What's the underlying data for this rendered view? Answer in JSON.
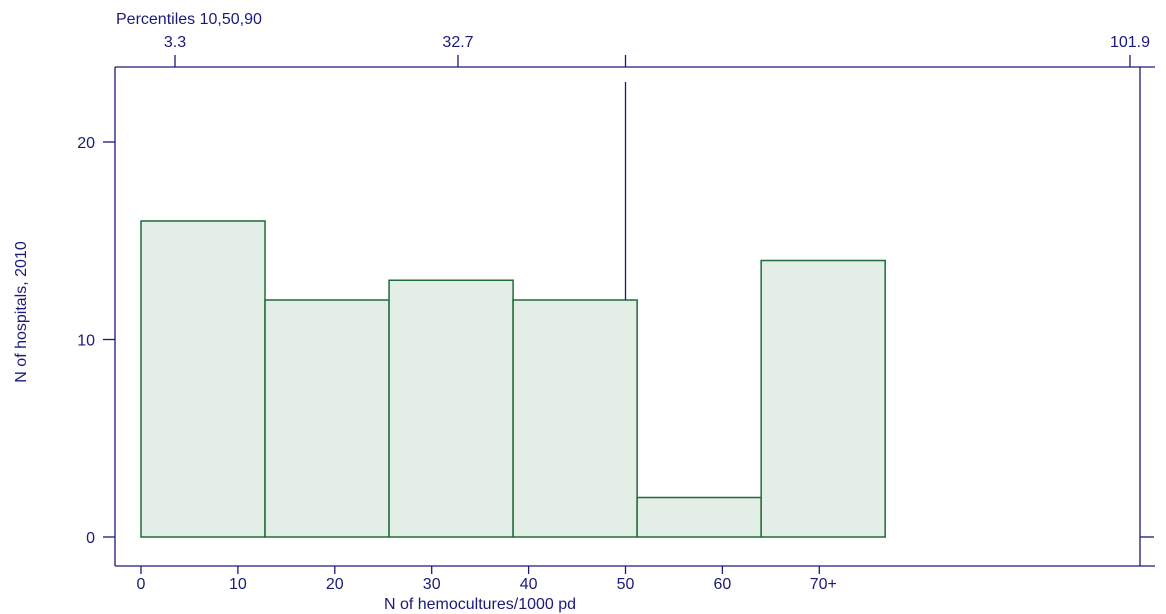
{
  "chart_data": {
    "type": "bar",
    "title": "",
    "xlabel": "N of hemocultures/1000 pd",
    "ylabel": "N of hospitals, 2010",
    "top_axis_title": "Percentiles 10,50,90",
    "x_tick_labels": [
      "0",
      "10",
      "20",
      "30",
      "40",
      "50",
      "60",
      "70+"
    ],
    "x_tick_values": [
      0,
      10,
      20,
      30,
      40,
      50,
      60,
      70
    ],
    "y_tick_values": [
      0,
      10,
      20
    ],
    "y_tick_labels": [
      "0",
      "10",
      "20"
    ],
    "ylim": [
      0,
      23
    ],
    "bins": [
      {
        "start": 0,
        "end": 12.8,
        "value": 16
      },
      {
        "start": 12.8,
        "end": 25.6,
        "value": 12
      },
      {
        "start": 25.6,
        "end": 38.4,
        "value": 13
      },
      {
        "start": 38.4,
        "end": 51.2,
        "value": 12
      },
      {
        "start": 51.2,
        "end": 64.0,
        "value": 2
      },
      {
        "start": 64.0,
        "end": 76.8,
        "value": 14
      }
    ],
    "percentiles": [
      {
        "label": "3.3",
        "value": 3.3
      },
      {
        "label": "32.7",
        "value": 32.7
      },
      {
        "label": "101.9",
        "value": 101.9
      }
    ],
    "reference_line_x": 50,
    "colors": {
      "axis": "#1a1a7a",
      "bar_fill": "#e3efe6",
      "bar_stroke": "#1f6b3a"
    }
  }
}
